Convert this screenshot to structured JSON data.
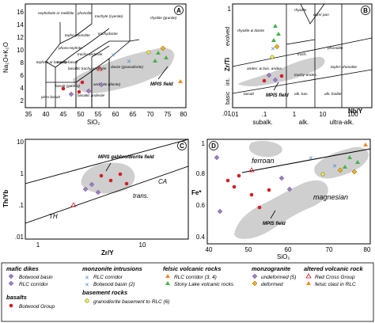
{
  "panel_a": {
    "letter": "A",
    "x_ticks": [
      "35",
      "40",
      "45",
      "50",
      "55",
      "60",
      "65",
      "70",
      "75",
      "80"
    ],
    "y_ticks": [
      "2",
      "4",
      "6",
      "8",
      "10",
      "12",
      "14",
      "16"
    ],
    "x_label": "SiO₂",
    "y_label": "Na₂O+K₂O",
    "fields": {
      "nephelinite": "nephelinite or melilitite",
      "phonolite": "phonolite",
      "trachyte": "trachyte (syenite)",
      "trachydacite": "trachydacite",
      "rhyolite": "rhyolite (granite)",
      "dacite": "dacite (granodiorite)",
      "tephriphonolite": "tephri-phonolite",
      "phonotephrite": "phono-tephrite",
      "tephrite": "tephrite or basanite",
      "trachybasalt": "trachy-basalt",
      "trachyandesite": "trachy-andesite",
      "basalt": "basalt (gabbro)",
      "basaltic_andesite": "basaltic andesite",
      "andesite": "andesite (diorite)",
      "picrobasalt": "picro-basalt",
      "basaltic_trachyandesite": "basaltic trachy-andesite"
    },
    "mpis": "MPIS field"
  },
  "panel_b": {
    "letter": "B",
    "x_ticks": [
      ".01",
      ".1",
      "1",
      "10",
      "100"
    ],
    "y_ticks": [
      ".01",
      "1"
    ],
    "x_label": "Nb/Y",
    "y_label": "Zr/Ti",
    "y_regions": [
      "evolved",
      "int.",
      "basic"
    ],
    "x_regions": [
      "subalk.",
      "alk.",
      "ultra-alk."
    ],
    "fields": {
      "rhyolite": "rhyolite",
      "rhyolite_dacite": "rhyolite & dacite",
      "trachyte": "trach.",
      "phonolite": "phonolite",
      "andesite_basaltic": "andes. & bas. andes.",
      "trachyandesite": "trachy-andes.",
      "tephriphonolite": "tephri-phonolite",
      "basalt": "basalt",
      "alk_basalt": "alk. bas.",
      "foidite": "alk. foidite",
      "com_pan": "com/ pan"
    },
    "mpis": "MPIS field"
  },
  "panel_c": {
    "letter": "C",
    "x_ticks": [
      "1",
      "10"
    ],
    "y_ticks": [
      ".01",
      ".1",
      "1",
      "10"
    ],
    "x_label": "Zr/Y",
    "y_label": "Th/Yb",
    "fields": {
      "CA": "CA",
      "trans": "trans.",
      "TH": "TH"
    },
    "mpis": "MPIS gabbro/diorite field"
  },
  "panel_d": {
    "letter": "D",
    "x_ticks": [
      "40",
      "50",
      "60",
      "70",
      "80"
    ],
    "y_ticks": [
      "0.4",
      "0.6",
      "0.8",
      "1"
    ],
    "x_label": "SiO₂",
    "y_label": "Fe*",
    "fields": {
      "ferroan": "ferroan",
      "magnesian": "magnesian"
    },
    "mpis": "MPIS field"
  },
  "legend": {
    "mafic_dikes": {
      "title": "mafic dikes",
      "items": [
        "Botwood basin",
        "RLC corridor"
      ]
    },
    "basalts": {
      "title": "basalts",
      "items": [
        "Botwood Group"
      ]
    },
    "monzonite": {
      "title": "monzonite intrusions",
      "items": [
        "RLC corridor",
        "Botwood basin (2)"
      ]
    },
    "basement": {
      "title": "basement rocks",
      "items": [
        "granodiorite basement to RLC (6)"
      ]
    },
    "felsic": {
      "title": "felsic volcanic rocks",
      "items": [
        "RLC corridor (3, 4)",
        "Stony Lake volcanic rocks"
      ]
    },
    "monzogranite": {
      "title": "monzogranite",
      "items": [
        "undeformed (5)",
        "deformed"
      ]
    },
    "altered": {
      "title": "altered volcanic rock",
      "items": [
        "Red Cross Group",
        "felsic clast in RLC"
      ]
    }
  },
  "colors": {
    "mpis_gray": "#cfcfcf",
    "purple_diamond": "#9b7fc0",
    "red_dot": "#d21f26",
    "yellow_circle": "#f5ee3a",
    "yellow_diamond": "#f3b400",
    "blue_x": "#4b86c5",
    "green_triangle": "#46b149",
    "orange_triangle": "#f08a24"
  }
}
